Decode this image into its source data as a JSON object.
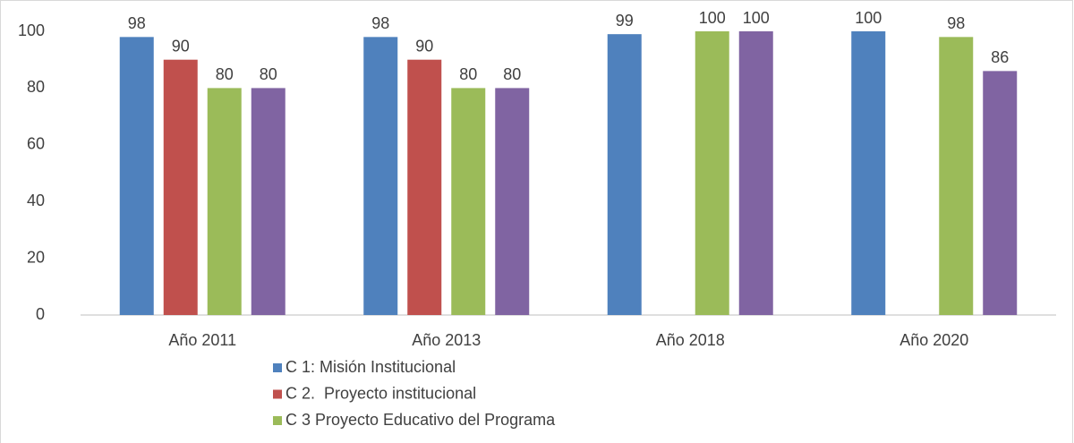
{
  "chart_data": {
    "type": "bar",
    "categories": [
      "Año 2011",
      "Año 2013",
      "Año 2018",
      "Año 2020"
    ],
    "series": [
      {
        "name": "C 1: Misión Institucional",
        "color": "#4f81bd",
        "values": [
          98,
          98,
          99,
          100
        ]
      },
      {
        "name": "C 2.  Proyecto institucional",
        "color": "#c0504d",
        "values": [
          90,
          90,
          null,
          null
        ]
      },
      {
        "name": "C 3 Proyecto Educativo del Programa",
        "color": "#9bbb59",
        "values": [
          80,
          80,
          100,
          98
        ]
      },
      {
        "color": "#8064a2",
        "values": [
          80,
          80,
          100,
          86
        ]
      }
    ],
    "ylim": [
      0,
      100
    ],
    "yticks": [
      0,
      20,
      40,
      60,
      80,
      100
    ],
    "grid": false
  }
}
